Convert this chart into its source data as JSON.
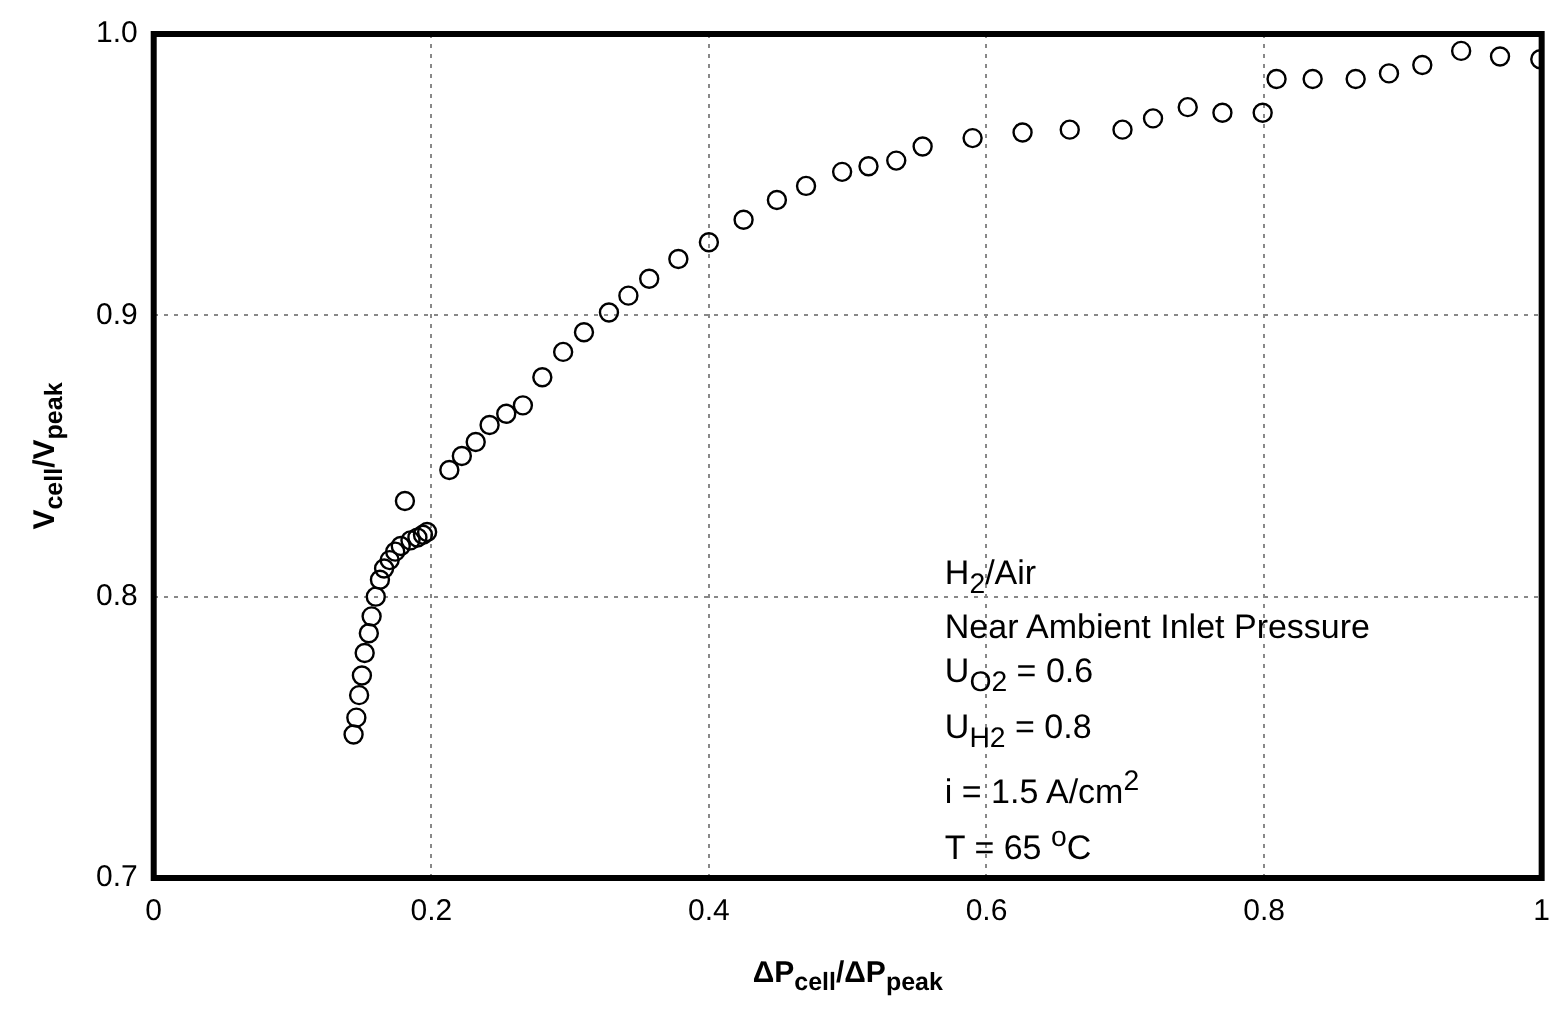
{
  "chart_data": {
    "type": "scatter",
    "xlabel": "ΔP$_{cell}$/ΔP$_{peak}$",
    "ylabel": "V$_{cell}$/V$_{peak}$",
    "x": [
      0.144,
      0.146,
      0.148,
      0.15,
      0.152,
      0.155,
      0.157,
      0.16,
      0.163,
      0.166,
      0.17,
      0.174,
      0.178,
      0.181,
      0.185,
      0.19,
      0.194,
      0.197,
      0.213,
      0.222,
      0.232,
      0.242,
      0.254,
      0.266,
      0.28,
      0.295,
      0.31,
      0.328,
      0.342,
      0.357,
      0.378,
      0.4,
      0.425,
      0.449,
      0.47,
      0.496,
      0.515,
      0.535,
      0.554,
      0.59,
      0.626,
      0.66,
      0.698,
      0.72,
      0.745,
      0.77,
      0.799,
      0.809,
      0.835,
      0.866,
      0.89,
      0.914,
      0.942,
      0.97,
      0.999
    ],
    "values": [
      0.751,
      0.757,
      0.765,
      0.772,
      0.78,
      0.787,
      0.793,
      0.8,
      0.806,
      0.81,
      0.813,
      0.816,
      0.818,
      0.834,
      0.82,
      0.821,
      0.822,
      0.823,
      0.845,
      0.85,
      0.855,
      0.861,
      0.865,
      0.868,
      0.878,
      0.887,
      0.894,
      0.901,
      0.907,
      0.913,
      0.92,
      0.926,
      0.934,
      0.941,
      0.946,
      0.951,
      0.953,
      0.955,
      0.96,
      0.963,
      0.965,
      0.966,
      0.966,
      0.97,
      0.974,
      0.972,
      0.972,
      0.984,
      0.984,
      0.984,
      0.986,
      0.989,
      0.994,
      0.992,
      0.991
    ],
    "color": "#000000",
    "marker": "circle",
    "grid": true,
    "line_style": "dotted",
    "xlim": [
      0,
      1
    ],
    "xticks": [
      0,
      0.2,
      0.4,
      0.6,
      0.8,
      1
    ],
    "ylim": [
      0.7,
      1
    ],
    "yticks": [
      0.7,
      0.8,
      0.9,
      {
        "value": 1,
        "label": "1.0"
      }
    ],
    "annotations": [
      "H$_{2}$/Air",
      "Near Ambient Inlet Pressure",
      "U$_{O2}$ = 0.6",
      "U$_{H2}$ = 0.8",
      "i = 1.5 A/cm$^{2}$",
      "T = 65 $^{o}$C"
    ]
  }
}
